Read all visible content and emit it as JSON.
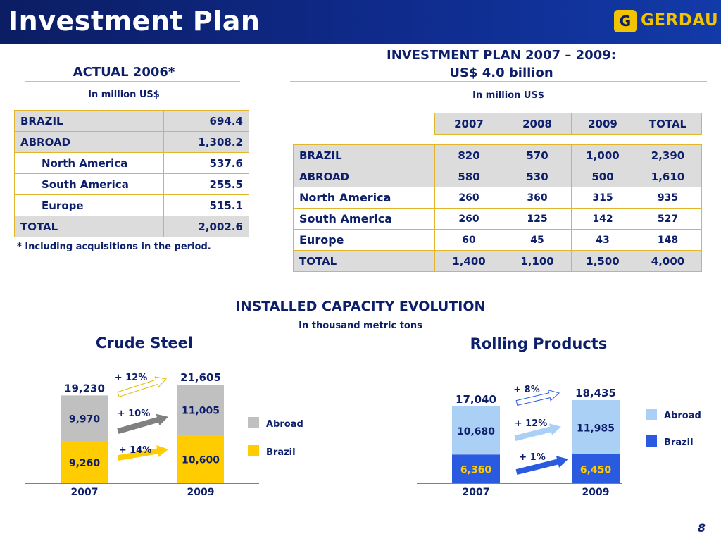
{
  "header": {
    "title": "Investment Plan",
    "logo_text": "GERDAU",
    "logo_mark": "G"
  },
  "actual": {
    "heading": "ACTUAL 2006*",
    "unit": "In million US$",
    "rows": [
      {
        "label": "BRAZIL",
        "value": "694.4"
      },
      {
        "label": "ABROAD",
        "value": "1,308.2"
      },
      {
        "label": "North America",
        "value": "537.6"
      },
      {
        "label": "South America",
        "value": "255.5"
      },
      {
        "label": "Europe",
        "value": "515.1"
      },
      {
        "label": "TOTAL",
        "value": "2,002.6"
      }
    ],
    "footnote": "* Including acquisitions in the period."
  },
  "plan": {
    "heading_line1": "INVESTMENT PLAN 2007 – 2009:",
    "heading_line2": "US$ 4.0 billion",
    "unit": "In million US$",
    "columns": [
      "2007",
      "2008",
      "2009",
      "TOTAL"
    ],
    "rows": [
      {
        "label": "BRAZIL",
        "values": [
          "820",
          "570",
          "1,000",
          "2,390"
        ]
      },
      {
        "label": "ABROAD",
        "values": [
          "580",
          "530",
          "500",
          "1,610"
        ]
      },
      {
        "label": "North America",
        "values": [
          "260",
          "360",
          "315",
          "935"
        ]
      },
      {
        "label": "South America",
        "values": [
          "260",
          "125",
          "142",
          "527"
        ]
      },
      {
        "label": "Europe",
        "values": [
          "60",
          "45",
          "43",
          "148"
        ]
      },
      {
        "label": "TOTAL",
        "values": [
          "1,400",
          "1,100",
          "1,500",
          "4,000"
        ]
      }
    ]
  },
  "capacity": {
    "heading": "INSTALLED CAPACITY EVOLUTION",
    "unit": "In thousand metric tons"
  },
  "chart_data": [
    {
      "type": "bar",
      "stacked": true,
      "title": "Crude Steel",
      "categories": [
        "2007",
        "2009"
      ],
      "series": [
        {
          "name": "Brazil",
          "values": [
            9260,
            10600
          ],
          "labels": [
            "9,260",
            "10,600"
          ],
          "color": "#ffcc00"
        },
        {
          "name": "Abroad",
          "values": [
            9970,
            11005
          ],
          "labels": [
            "9,970",
            "11,005"
          ],
          "color": "#c0c0c0"
        }
      ],
      "totals": [
        "19,230",
        "21,605"
      ],
      "growth": {
        "total": "+ 12%",
        "abroad": "+ 10%",
        "brazil": "+ 14%"
      },
      "legend": [
        "Abroad",
        "Brazil"
      ],
      "legend_position": "right"
    },
    {
      "type": "bar",
      "stacked": true,
      "title": "Rolling Products",
      "categories": [
        "2007",
        "2009"
      ],
      "series": [
        {
          "name": "Brazil",
          "values": [
            6360,
            6450
          ],
          "labels": [
            "6,360",
            "6,450"
          ],
          "color": "#2a5ae0"
        },
        {
          "name": "Abroad",
          "values": [
            10680,
            11985
          ],
          "labels": [
            "10,680",
            "11,985"
          ],
          "color": "#aad0f5"
        }
      ],
      "totals": [
        "17,040",
        "18,435"
      ],
      "growth": {
        "total": "+ 8%",
        "abroad": "+ 12%",
        "brazil": "+ 1%"
      },
      "legend": [
        "Abroad",
        "Brazil"
      ],
      "legend_position": "right"
    }
  ],
  "footer": {
    "page_number": "8"
  }
}
